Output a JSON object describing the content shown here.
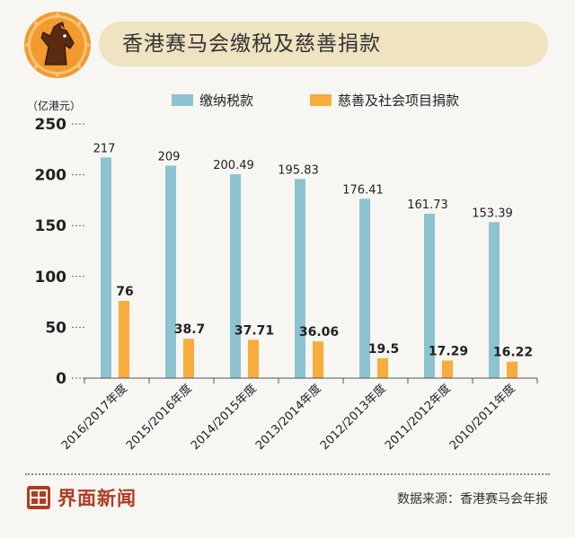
{
  "header": {
    "title": "香港赛马会缴税及慈善捐款"
  },
  "footer": {
    "brand": "界面新闻",
    "source": "数据来源：香港赛马会年报"
  },
  "colors": {
    "tax": "#8cc3cf",
    "charity": "#f8ac3b",
    "banner": "#efe3c1",
    "badge": "#f39a2d",
    "brand": "#b33b22"
  },
  "chart_data": {
    "type": "bar",
    "unit_label": "（亿港元）",
    "categories": [
      "2016/2017年度",
      "2015/2016年度",
      "2014/2015年度",
      "2013/2014年度",
      "2012/2013年度",
      "2011/2012年度",
      "2010/2011年度"
    ],
    "series": [
      {
        "name": "缴纳税款",
        "values": [
          217,
          209,
          200.49,
          195.83,
          176.41,
          161.73,
          153.39
        ],
        "labels": [
          "217",
          "209",
          "200.49",
          "195.83",
          "176.41",
          "161.73",
          "153.39"
        ]
      },
      {
        "name": "慈善及社会项目捐款",
        "values": [
          76,
          38.7,
          37.71,
          36.06,
          19.5,
          17.29,
          16.22
        ],
        "labels": [
          "76",
          "38.7",
          "37.71",
          "36.06",
          "19.5",
          "17.29",
          "16.22"
        ]
      }
    ],
    "yticks": [
      0,
      50,
      100,
      150,
      200,
      250
    ],
    "ylim": [
      0,
      250
    ],
    "legend_position": "top",
    "grid": false
  }
}
